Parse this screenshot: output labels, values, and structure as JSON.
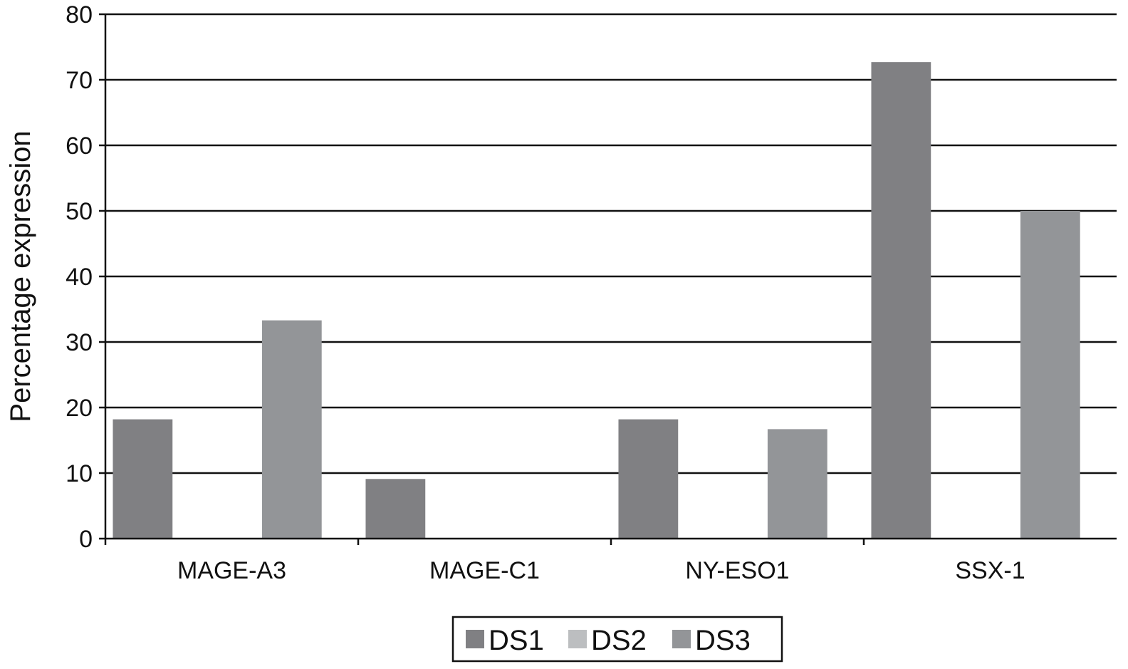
{
  "chart_data": {
    "type": "bar",
    "title": "",
    "xlabel": "",
    "ylabel": "Percentage expression",
    "ylim": [
      0,
      80
    ],
    "yticks": [
      0,
      10,
      20,
      30,
      40,
      50,
      60,
      70,
      80
    ],
    "grid": "horizontal",
    "legend_position": "bottom",
    "categories": [
      "MAGE-A3",
      "MAGE-C1",
      "NY-ESO1",
      "SSX-1"
    ],
    "series": [
      {
        "name": "DS1",
        "color": "#808083",
        "values": [
          18.2,
          9.1,
          18.2,
          72.7
        ]
      },
      {
        "name": "DS2",
        "color": "#bcbec0",
        "values": [
          0,
          0,
          0,
          0
        ]
      },
      {
        "name": "DS3",
        "color": "#939598",
        "values": [
          33.3,
          0,
          16.7,
          50.0
        ]
      }
    ]
  }
}
